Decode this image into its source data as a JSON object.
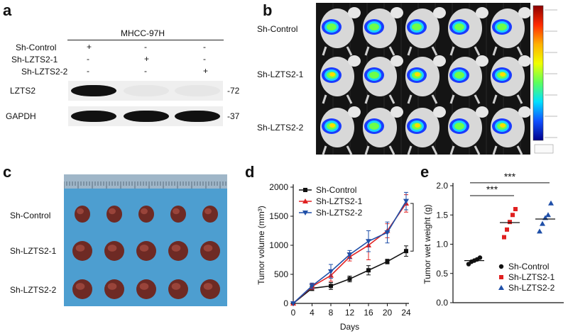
{
  "panel_a": {
    "letter": "a",
    "cell_line": "MHCC-97H",
    "rows": [
      {
        "name": "Sh-Control",
        "marks": [
          "+",
          "-",
          "-"
        ]
      },
      {
        "name": "Sh-LZTS2-1",
        "marks": [
          "-",
          "+",
          "-"
        ]
      },
      {
        "name": "Sh-LZTS2-2",
        "marks": [
          "-",
          "-",
          "+"
        ]
      }
    ],
    "blots": [
      {
        "protein": "LZTS2",
        "kda": "-72",
        "intensity": [
          1.0,
          0.12,
          0.12
        ]
      },
      {
        "protein": "GAPDH",
        "kda": "-37",
        "intensity": [
          1.0,
          1.0,
          1.0
        ]
      }
    ]
  },
  "panel_b": {
    "letter": "b",
    "groups": [
      "Sh-Control",
      "Sh-LZTS2-1",
      "Sh-LZTS2-2"
    ],
    "mice_per_group": 5,
    "colorbar": [
      "#8b0000",
      "#ff2a00",
      "#ffb000",
      "#f0ff00",
      "#5cff5c",
      "#00e0ff",
      "#1050ff",
      "#00008b"
    ]
  },
  "panel_c": {
    "letter": "c",
    "groups": [
      "Sh-Control",
      "Sh-LZTS2-1",
      "Sh-LZTS2-2"
    ],
    "tumors_per_group": 5,
    "background_color": "#4d9ed0"
  },
  "panel_d": {
    "letter": "d",
    "chart_data": {
      "type": "line",
      "xlabel": "Days",
      "ylabel": "Tumor volume (mm³)",
      "x": [
        0,
        4,
        8,
        12,
        16,
        20,
        24
      ],
      "xlim": [
        0,
        24
      ],
      "ylim": [
        0,
        2000
      ],
      "yticks": [
        0,
        500,
        1000,
        1500,
        2000
      ],
      "xticks": [
        0,
        4,
        8,
        12,
        16,
        20,
        24
      ],
      "series": [
        {
          "name": "Sh-Control",
          "color": "#111111",
          "marker": "square",
          "values": [
            0,
            260,
            300,
            420,
            570,
            720,
            900
          ],
          "err": [
            0,
            40,
            60,
            50,
            80,
            40,
            90
          ]
        },
        {
          "name": "Sh-LZTS2-1",
          "color": "#e02020",
          "marker": "triangle-up",
          "values": [
            0,
            290,
            480,
            800,
            1000,
            1250,
            1720
          ],
          "err": [
            0,
            50,
            100,
            70,
            250,
            120,
            150
          ]
        },
        {
          "name": "Sh-LZTS2-2",
          "color": "#1f4fa8",
          "marker": "triangle-down",
          "values": [
            0,
            300,
            550,
            840,
            1070,
            1220,
            1760
          ],
          "err": [
            0,
            50,
            120,
            70,
            180,
            180,
            150
          ]
        }
      ],
      "significance": "***",
      "legend": "top-left"
    }
  },
  "panel_e": {
    "letter": "e",
    "chart_data": {
      "type": "scatter",
      "ylabel": "Tumor wet weight (g)",
      "ylim": [
        0,
        2.0
      ],
      "yticks": [
        0.0,
        0.5,
        1.0,
        1.5,
        2.0
      ],
      "series": [
        {
          "name": "Sh-Control",
          "color": "#111111",
          "marker": "circle",
          "values": [
            0.66,
            0.7,
            0.72,
            0.74,
            0.77
          ],
          "mean": 0.72
        },
        {
          "name": "Sh-LZTS2-1",
          "color": "#e02020",
          "marker": "square",
          "values": [
            1.12,
            1.25,
            1.38,
            1.5,
            1.6
          ],
          "mean": 1.37
        },
        {
          "name": "Sh-LZTS2-2",
          "color": "#1f4fa8",
          "marker": "triangle-up",
          "values": [
            1.22,
            1.35,
            1.45,
            1.5,
            1.7
          ],
          "mean": 1.43
        }
      ],
      "comparisons": [
        {
          "from": 0,
          "to": 1,
          "label": "***"
        },
        {
          "from": 0,
          "to": 2,
          "label": "***"
        }
      ],
      "legend": "bottom-right"
    }
  }
}
